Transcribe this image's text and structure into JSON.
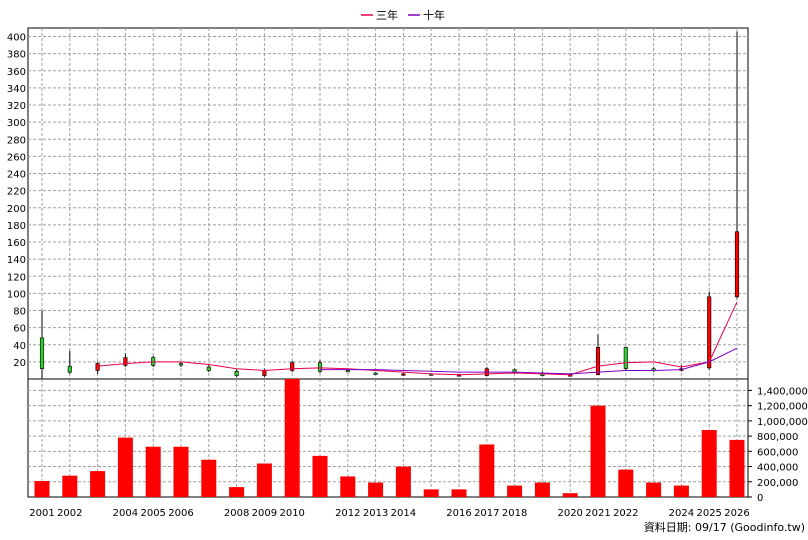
{
  "chart_data": {
    "type": "candlestick+line+bar",
    "x_tick_labels": [
      "2001",
      "2002",
      "2004",
      "2005",
      "2006",
      "2008",
      "2009",
      "2010",
      "2012",
      "2013",
      "2014",
      "2016",
      "2017",
      "2018",
      "2020",
      "2021",
      "2022",
      "2024",
      "2025",
      "2026"
    ],
    "legend": [
      {
        "name": "三年",
        "color": "#e8004c"
      },
      {
        "name": "十年",
        "color": "#8000c0"
      }
    ],
    "price_axis": {
      "ylim": [
        0,
        410
      ],
      "ticks": [
        20,
        40,
        60,
        80,
        100,
        120,
        140,
        160,
        180,
        200,
        220,
        240,
        260,
        280,
        300,
        320,
        340,
        360,
        380,
        400
      ]
    },
    "volume_axis": {
      "ylim": [
        0,
        1550000
      ],
      "ticks": [
        "0",
        "200,000",
        "400,000",
        "600,000",
        "800,000",
        "1,000,000",
        "1,200,000",
        "1,400,000"
      ],
      "tick_values": [
        0,
        200000,
        400000,
        600000,
        800000,
        1000000,
        1200000,
        1400000
      ]
    },
    "x_years": [
      2001,
      2002,
      2003,
      2004,
      2005,
      2006,
      2007,
      2008,
      2009,
      2010,
      2011,
      2012,
      2013,
      2014,
      2015,
      2016,
      2017,
      2018,
      2019,
      2020,
      2021,
      2022,
      2023,
      2024,
      2025,
      2026
    ],
    "candles": [
      {
        "open": 48,
        "close": 12,
        "high": 80,
        "low": -2
      },
      {
        "open": 15,
        "close": 8,
        "high": 33,
        "low": 6
      },
      {
        "open": 10,
        "close": 18,
        "high": 20,
        "low": 6
      },
      {
        "open": 16,
        "close": 25,
        "high": 30,
        "low": 14
      },
      {
        "open": 25,
        "close": 16,
        "high": 27,
        "low": 14
      },
      {
        "open": 18,
        "close": 17,
        "high": 20,
        "low": 14
      },
      {
        "open": 14,
        "close": 10,
        "high": 16,
        "low": 8
      },
      {
        "open": 9,
        "close": 4,
        "high": 11,
        "low": 2
      },
      {
        "open": 4,
        "close": 10,
        "high": 12,
        "low": 2
      },
      {
        "open": 10,
        "close": 19,
        "high": 21,
        "low": 8
      },
      {
        "open": 19,
        "close": 9,
        "high": 22,
        "low": 7
      },
      {
        "open": 10,
        "close": 9,
        "high": 12,
        "low": 8
      },
      {
        "open": 7,
        "close": 6,
        "high": 8,
        "low": 5
      },
      {
        "open": 6,
        "close": 6,
        "high": 7,
        "low": 5
      },
      {
        "open": 6,
        "close": 5,
        "high": 7,
        "low": 4
      },
      {
        "open": 5,
        "close": 5,
        "high": 6,
        "low": 4
      },
      {
        "open": 4,
        "close": 12,
        "high": 14,
        "low": 3
      },
      {
        "open": 11,
        "close": 8,
        "high": 12,
        "low": 6
      },
      {
        "open": 7,
        "close": 4,
        "high": 9,
        "low": 3
      },
      {
        "open": 4,
        "close": 5,
        "high": 7,
        "low": 3
      },
      {
        "open": 5,
        "close": 37,
        "high": 52,
        "low": 5
      },
      {
        "open": 37,
        "close": 12,
        "high": 38,
        "low": 10
      },
      {
        "open": 12,
        "close": 10,
        "high": 14,
        "low": 8
      },
      {
        "open": 10,
        "close": 12,
        "high": 16,
        "low": 9
      },
      {
        "open": 13,
        "close": 96,
        "high": 102,
        "low": 11
      },
      {
        "open": 96,
        "close": 172,
        "high": 406,
        "low": 94
      }
    ],
    "three_year_avg": [
      null,
      null,
      15,
      18,
      20,
      20,
      17,
      12,
      10,
      12,
      13,
      12,
      10,
      8,
      6,
      5,
      6,
      7,
      6,
      5,
      15,
      19,
      20,
      14,
      20,
      90
    ],
    "ten_year_avg": [
      null,
      null,
      null,
      null,
      null,
      null,
      null,
      null,
      null,
      null,
      11,
      11,
      11,
      10,
      9,
      8,
      8,
      8,
      7,
      6,
      8,
      10,
      10,
      11,
      20,
      36
    ],
    "volume": [
      210000,
      280000,
      340000,
      780000,
      660000,
      660000,
      490000,
      130000,
      440000,
      1560000,
      540000,
      270000,
      190000,
      400000,
      100000,
      100000,
      690000,
      150000,
      190000,
      50000,
      1200000,
      360000,
      190000,
      150000,
      880000,
      750000
    ],
    "up_color": "#ff0000",
    "down_color": "#33cc33",
    "volume_color": "#ff0000"
  },
  "source_note": "資料日期: 09/17 (Goodinfo.tw)"
}
